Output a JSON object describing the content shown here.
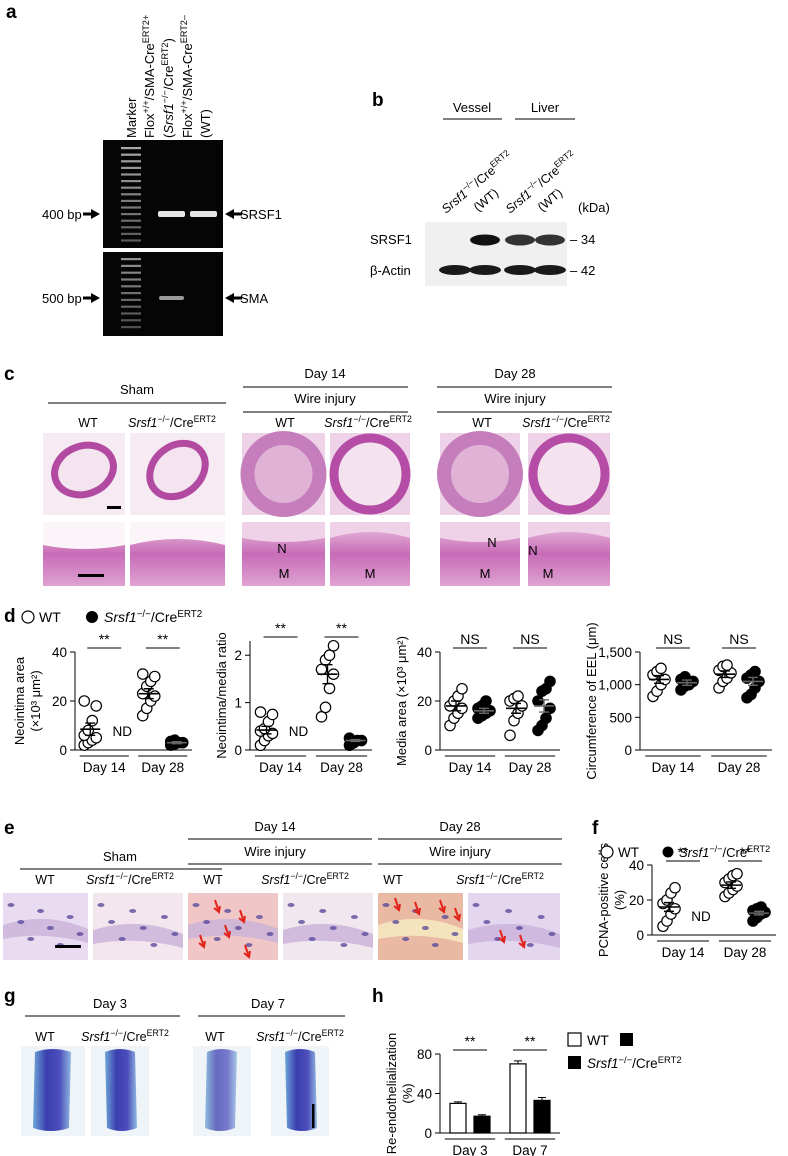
{
  "genotype": [
    "Srsf1",
    "−/−",
    "/Cre",
    "ERT2"
  ],
  "panels": {
    "a": {
      "label": "a",
      "columns": [
        [
          "Marker"
        ],
        [
          "Flox",
          "+/+",
          "/SMA-Cre",
          "ERT2+"
        ],
        [
          "(",
          "Srsf1",
          "−/−",
          "/Cre",
          "ERT2",
          ")"
        ],
        [
          "Flox",
          "+/+",
          "/SMA-Cre",
          "ERT2–"
        ],
        [
          "(WT)"
        ]
      ],
      "sizes": [
        "400 bp",
        "500 bp"
      ],
      "bands": [
        "SRSF1",
        "SMA"
      ]
    },
    "b": {
      "label": "b",
      "groups": [
        "Vessel",
        "Liver"
      ],
      "wt": "(WT)",
      "unit": "(kDa)",
      "rows": [
        "SRSF1",
        "β-Actin"
      ],
      "weights": [
        "– 34",
        "– 42"
      ]
    },
    "c": {
      "label": "c",
      "sham": "Sham",
      "days": [
        "Day 14",
        "Day 28"
      ],
      "injury": "Wire injury",
      "wt": "WT",
      "layers": [
        "N",
        "M"
      ]
    },
    "d": {
      "label": "d",
      "legend": "WT"
    },
    "e": {
      "label": "e",
      "sham": "Sham",
      "days": [
        "Day 14",
        "Day 28"
      ],
      "injury": "Wire injury",
      "wt": "WT"
    },
    "f": {
      "label": "f",
      "legend": "WT"
    },
    "g": {
      "label": "g",
      "days": [
        "Day 3",
        "Day 7"
      ],
      "wt": "WT"
    },
    "h": {
      "label": "h",
      "legend": "WT"
    }
  },
  "chart_data": [
    {
      "type": "dotplot",
      "ylabel": [
        "Neointima area",
        "(×10³ μm²)"
      ],
      "ylim": [
        0,
        40
      ],
      "yticks": [
        0,
        20,
        40
      ],
      "categories": [
        "Day 14",
        "Day 28"
      ],
      "annotations": [
        "**",
        "**"
      ],
      "missing_label": "ND",
      "series": [
        {
          "color": "#ffffff",
          "values": [
            [
              2,
              3,
              4,
              5,
              6,
              8,
              12,
              18,
              20
            ],
            [
              14,
              17,
              20,
              22,
              23,
              26,
              28,
              30,
              31
            ]
          ],
          "means": [
            8.5,
            23
          ],
          "sems": [
            2.5,
            2
          ]
        },
        {
          "color": "#000000",
          "values": [
            null,
            [
              2,
              2.5,
              3,
              3,
              3.5,
              4
            ]
          ],
          "means": [
            null,
            3
          ],
          "sems": [
            null,
            0.4
          ]
        }
      ]
    },
    {
      "type": "dotplot",
      "ylabel": [
        "Neointima/media ratio"
      ],
      "ylim": [
        0,
        2.3
      ],
      "yticks": [
        0,
        1,
        2
      ],
      "categories": [
        "Day 14",
        "Day 28"
      ],
      "annotations": [
        "**",
        "**"
      ],
      "missing_label": "ND",
      "series": [
        {
          "color": "#ffffff",
          "values": [
            [
              0.1,
              0.2,
              0.3,
              0.35,
              0.4,
              0.45,
              0.6,
              0.75,
              0.8
            ],
            [
              0.7,
              0.9,
              1.3,
              1.6,
              1.7,
              1.9,
              2.0,
              2.2
            ]
          ],
          "means": [
            0.42,
            1.6
          ],
          "sems": [
            0.08,
            0.2
          ]
        },
        {
          "color": "#000000",
          "values": [
            null,
            [
              0.1,
              0.15,
              0.2,
              0.2,
              0.25
            ]
          ],
          "means": [
            null,
            0.2
          ],
          "sems": [
            null,
            0.02
          ]
        }
      ]
    },
    {
      "type": "dotplot",
      "ylabel": [
        "Media area (×10³ μm²)"
      ],
      "ylim": [
        0,
        40
      ],
      "yticks": [
        0,
        20,
        40
      ],
      "categories": [
        "Day 14",
        "Day 28"
      ],
      "annotations": [
        "NS",
        "NS"
      ],
      "series": [
        {
          "color": "#ffffff",
          "values": [
            [
              10,
              13,
              15,
              17,
              18,
              20,
              22,
              25
            ],
            [
              6,
              12,
              15,
              18,
              20,
              21,
              22
            ]
          ],
          "means": [
            18,
            17
          ],
          "sems": [
            2,
            2
          ]
        },
        {
          "color": "#000000",
          "values": [
            [
              13,
              14,
              15,
              16,
              17,
              18,
              20
            ],
            [
              8,
              10,
              13,
              17,
              20,
              24,
              25,
              28
            ]
          ],
          "means": [
            16,
            18
          ],
          "sems": [
            1,
            2.5
          ]
        }
      ]
    },
    {
      "type": "dotplot",
      "ylabel": [
        "Circumference of EEL (μm)"
      ],
      "ylim": [
        0,
        1500
      ],
      "yticks": [
        0,
        500,
        {
          "value": 1000,
          "label": "1,000"
        },
        {
          "value": 1500,
          "label": "1,500"
        }
      ],
      "categories": [
        "Day 14",
        "Day 28"
      ],
      "annotations": [
        "NS",
        "NS"
      ],
      "series": [
        {
          "color": "#ffffff",
          "values": [
            [
              820,
              900,
              1000,
              1080,
              1150,
              1200,
              1250
            ],
            [
              950,
              1050,
              1100,
              1180,
              1220,
              1280,
              1300
            ]
          ],
          "means": [
            1080,
            1160
          ],
          "sems": [
            60,
            50
          ]
        },
        {
          "color": "#000000",
          "values": [
            [
              920,
              980,
              1000,
              1050,
              1080,
              1120
            ],
            [
              800,
              850,
              950,
              1050,
              1100,
              1150,
              1200
            ]
          ],
          "means": [
            1030,
            1050
          ],
          "sems": [
            40,
            60
          ]
        }
      ]
    },
    {
      "type": "dotplot",
      "ylabel": [
        "PCNA-positive cells",
        "(%)"
      ],
      "ylim": [
        0,
        40
      ],
      "yticks": [
        0,
        20,
        40
      ],
      "categories": [
        "Day 14",
        "Day 28"
      ],
      "annotations": [
        "**",
        "**"
      ],
      "missing_label": "ND",
      "series": [
        {
          "color": "#ffffff",
          "values": [
            [
              5,
              8,
              12,
              15,
              18,
              20,
              24,
              27
            ],
            [
              22,
              24,
              26,
              28,
              30,
              32,
              34,
              35
            ]
          ],
          "means": [
            16,
            28.5
          ],
          "sems": [
            2.5,
            1.8
          ]
        },
        {
          "color": "#000000",
          "values": [
            null,
            [
              8,
              10,
              12,
              13,
              14,
              15,
              16
            ]
          ],
          "means": [
            null,
            12.5
          ],
          "sems": [
            null,
            1
          ]
        }
      ]
    },
    {
      "type": "bar",
      "ylabel": [
        "Re-endothelialization",
        "(%)"
      ],
      "ylim": [
        0,
        80
      ],
      "yticks": [
        0,
        40,
        80
      ],
      "categories": [
        "Day 3",
        "Day 7"
      ],
      "annotations": [
        "**",
        "**"
      ],
      "series": [
        {
          "color": "#ffffff",
          "values": [
            30,
            70
          ],
          "errors": [
            1.5,
            3
          ]
        },
        {
          "color": "#000000",
          "values": [
            17,
            33
          ],
          "errors": [
            1.5,
            3
          ]
        }
      ]
    }
  ]
}
